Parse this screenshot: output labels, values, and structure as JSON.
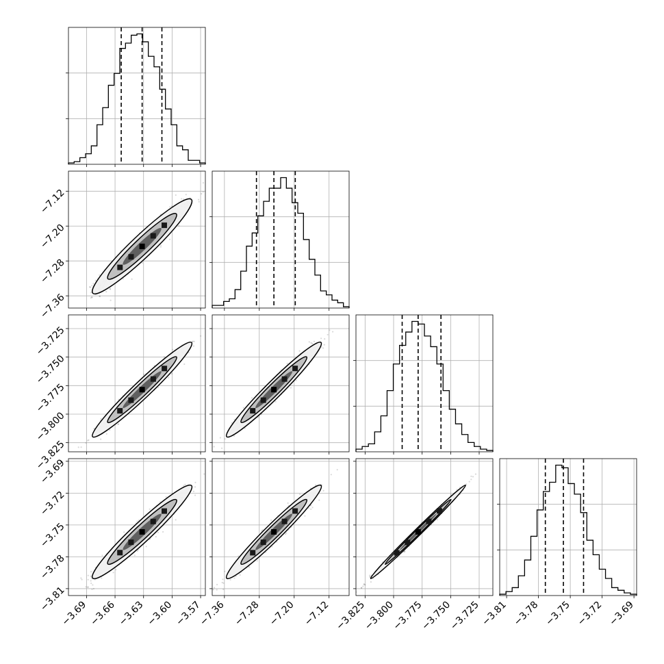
{
  "chart_data": {
    "type": "corner",
    "grid": true,
    "parameters": [
      {
        "ticks": [
          -3.69,
          -3.66,
          -3.63,
          -3.6,
          -3.57
        ],
        "tick_labels": [
          "−3.69",
          "−3.66",
          "−3.63",
          "−3.60",
          "−3.57"
        ],
        "range": [
          -3.709,
          -3.565
        ],
        "quantiles": [
          -3.6535,
          -3.6315,
          -3.6107
        ],
        "hist_counts": [
          0.01,
          0.02,
          0.05,
          0.08,
          0.14,
          0.3,
          0.43,
          0.6,
          0.69,
          0.88,
          0.92,
          0.98,
          0.99,
          0.93,
          0.82,
          0.74,
          0.57,
          0.42,
          0.3,
          0.14,
          0.11,
          0.03,
          0.03,
          0.01
        ]
      },
      {
        "ticks": [
          -7.36,
          -7.28,
          -7.2,
          -7.12
        ],
        "tick_labels": [
          "−7.36",
          "−7.28",
          "−7.20",
          "−7.12"
        ],
        "range": [
          -7.388,
          -7.074
        ],
        "quantiles": [
          -7.2865,
          -7.2465,
          -7.1975
        ],
        "hist_counts": [
          0.02,
          0.02,
          0.05,
          0.07,
          0.14,
          0.28,
          0.47,
          0.57,
          0.7,
          0.81,
          0.91,
          0.91,
          0.99,
          0.91,
          0.8,
          0.72,
          0.52,
          0.37,
          0.25,
          0.13,
          0.1,
          0.06,
          0.04,
          0.01
        ]
      },
      {
        "ticks": [
          -3.825,
          -3.8,
          -3.775,
          -3.75,
          -3.725
        ],
        "tick_labels": [
          "−3.825",
          "−3.800",
          "−3.775",
          "−3.750",
          "−3.725"
        ],
        "range": [
          -3.833,
          -3.713
        ],
        "quantiles": [
          -3.7925,
          -3.7785,
          -3.7585
        ],
        "hist_counts": [
          0.02,
          0.04,
          0.06,
          0.15,
          0.27,
          0.46,
          0.66,
          0.8,
          0.9,
          0.98,
          0.96,
          0.87,
          0.79,
          0.66,
          0.46,
          0.32,
          0.21,
          0.13,
          0.07,
          0.04,
          0.02,
          0.01
        ]
      },
      {
        "ticks": [
          -3.81,
          -3.78,
          -3.75,
          -3.72,
          -3.69
        ],
        "tick_labels": [
          "−3.81",
          "−3.78",
          "−3.75",
          "−3.72",
          "−3.69"
        ],
        "range": [
          -3.8165,
          -3.6875
        ],
        "quantiles": [
          -3.7735,
          -3.7565,
          -3.7375
        ],
        "hist_counts": [
          0.01,
          0.03,
          0.06,
          0.15,
          0.27,
          0.45,
          0.65,
          0.79,
          0.86,
          0.99,
          0.97,
          0.85,
          0.77,
          0.63,
          0.42,
          0.31,
          0.2,
          0.13,
          0.06,
          0.04,
          0.02,
          0.01
        ]
      }
    ],
    "correlations": [
      [
        1.0,
        0.95,
        0.97,
        0.96
      ],
      [
        0.95,
        1.0,
        0.97,
        0.97
      ],
      [
        0.97,
        0.97,
        1.0,
        0.995
      ],
      [
        0.96,
        0.97,
        0.995,
        1.0
      ]
    ]
  }
}
